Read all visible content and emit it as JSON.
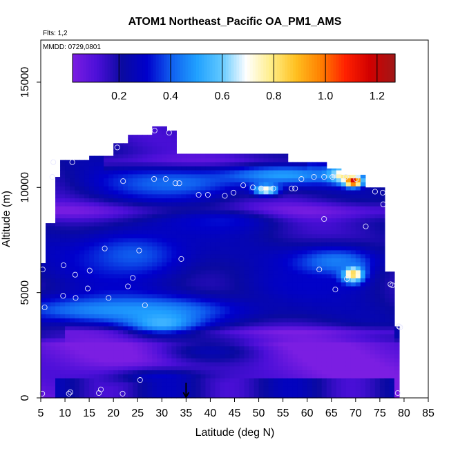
{
  "chart_data": {
    "type": "heatmap",
    "title": "ATOM1 Northeast_Pacific OA_PM1_AMS",
    "flts_text": "Flts: 1,2",
    "mmdd_text": "MMDD: 0729,0801",
    "xlabel": "Latitude (deg N)",
    "ylabel": "Altitude (m)",
    "xlim": [
      5,
      85
    ],
    "ylim": [
      0,
      17000
    ],
    "x_ticks": [
      5,
      10,
      15,
      20,
      25,
      30,
      35,
      40,
      45,
      50,
      55,
      60,
      65,
      70,
      75,
      80,
      85
    ],
    "y_ticks": [
      0,
      5000,
      10000,
      15000
    ],
    "grid": false,
    "colorbar": {
      "min": 0.02,
      "max": 1.27,
      "ticks": [
        0.2,
        0.4,
        0.6,
        0.8,
        1.0,
        1.2
      ],
      "tick_labels": [
        "0.2",
        "0.4",
        "0.6",
        "0.8",
        "1.0",
        "1.2"
      ],
      "placement": "top"
    },
    "colormap": [
      "#7b1ee2",
      "#4b0fd8",
      "#0a0aa0",
      "#0000cc",
      "#1060f0",
      "#20a0ff",
      "#60c8ff",
      "#ffffff",
      "#ffee88",
      "#ffc020",
      "#ff8000",
      "#ff2000",
      "#d00000",
      "#a01818"
    ],
    "background_value": 0.05,
    "coverage": [
      {
        "lat": [
          5,
          6.5
        ],
        "alt_min": 0,
        "alt_max": 6400
      },
      {
        "lat": [
          6.5,
          8
        ],
        "alt_min": 0,
        "alt_max": 8300
      },
      {
        "lat": [
          8,
          9.5
        ],
        "alt_min": 0,
        "alt_max": 10500
      },
      {
        "lat": [
          9.5,
          15
        ],
        "alt_min": 0,
        "alt_max": 11300
      },
      {
        "lat": [
          15,
          20
        ],
        "alt_min": 0,
        "alt_max": 11500
      },
      {
        "lat": [
          20,
          23
        ],
        "alt_min": 0,
        "alt_max": 12100
      },
      {
        "lat": [
          23,
          28
        ],
        "alt_min": 0,
        "alt_max": 12500
      },
      {
        "lat": [
          28,
          31
        ],
        "alt_min": 0,
        "alt_max": 12900
      },
      {
        "lat": [
          31,
          33
        ],
        "alt_min": 0,
        "alt_max": 12700
      },
      {
        "lat": [
          33,
          56
        ],
        "alt_min": 0,
        "alt_max": 11600
      },
      {
        "lat": [
          56,
          64
        ],
        "alt_min": 0,
        "alt_max": 11200
      },
      {
        "lat": [
          64,
          67
        ],
        "alt_min": 0,
        "alt_max": 10900
      },
      {
        "lat": [
          67,
          72
        ],
        "alt_min": 0,
        "alt_max": 10600
      },
      {
        "lat": [
          72,
          76
        ],
        "alt_min": 0,
        "alt_max": 10000
      },
      {
        "lat": [
          76,
          78.5
        ],
        "alt_min": 0,
        "alt_max": 6000
      },
      {
        "lat": [
          78.5,
          79.5
        ],
        "alt_min": 0,
        "alt_max": 3400
      }
    ],
    "features": [
      {
        "lat": 22,
        "alt": 4200,
        "value": 0.48,
        "wlat": 28,
        "walt": 750
      },
      {
        "lat": 30,
        "alt": 3600,
        "value": 0.55,
        "wlat": 7,
        "walt": 550
      },
      {
        "lat": 24,
        "alt": 6800,
        "value": 0.4,
        "wlat": 14,
        "walt": 1400
      },
      {
        "lat": 32,
        "alt": 10200,
        "value": 0.42,
        "wlat": 16,
        "walt": 800
      },
      {
        "lat": 42,
        "alt": 8400,
        "value": 0.32,
        "wlat": 12,
        "walt": 600
      },
      {
        "lat": 55,
        "alt": 10600,
        "value": 0.5,
        "wlat": 14,
        "walt": 500
      },
      {
        "lat": 51.5,
        "alt": 9900,
        "value": 0.75,
        "wlat": 2.5,
        "walt": 250
      },
      {
        "lat": 69.5,
        "alt": 10300,
        "value": 1.2,
        "wlat": 1.8,
        "walt": 250
      },
      {
        "lat": 67.5,
        "alt": 10600,
        "value": 0.8,
        "wlat": 3,
        "walt": 350
      },
      {
        "lat": 69.5,
        "alt": 5900,
        "value": 0.85,
        "wlat": 2.5,
        "walt": 450
      },
      {
        "lat": 66,
        "alt": 6500,
        "value": 0.45,
        "wlat": 10,
        "walt": 800
      },
      {
        "lat": 60,
        "alt": 5400,
        "value": 0.3,
        "wlat": 14,
        "walt": 900
      },
      {
        "lat": 30,
        "alt": 1000,
        "value": 0.3,
        "wlat": 12,
        "walt": 500
      },
      {
        "lat": 40,
        "alt": 2200,
        "value": 0.25,
        "wlat": 10,
        "walt": 600
      }
    ],
    "dark_bands": [
      {
        "lat_min": 8,
        "lat_max": 77,
        "alt": 8900,
        "thick": 400
      },
      {
        "lat_min": 10,
        "lat_max": 78,
        "alt": 3100,
        "thick": 300
      },
      {
        "lat_min": 18,
        "lat_max": 60,
        "alt": 11200,
        "thick": 350
      }
    ],
    "sample_points": [
      [
        5.3,
        200
      ],
      [
        10.8,
        200
      ],
      [
        11.1,
        270
      ],
      [
        17.4,
        400
      ],
      [
        17.0,
        230
      ],
      [
        21.9,
        200
      ],
      [
        25.5,
        850
      ],
      [
        78.7,
        230
      ],
      [
        5.8,
        4300
      ],
      [
        5.4,
        6100
      ],
      [
        9.6,
        4850
      ],
      [
        12.2,
        4750
      ],
      [
        9.7,
        6300
      ],
      [
        12.1,
        5850
      ],
      [
        14.7,
        5200
      ],
      [
        15.1,
        6050
      ],
      [
        19.0,
        4750
      ],
      [
        23.0,
        5300
      ],
      [
        24.0,
        5700
      ],
      [
        26.5,
        4400
      ],
      [
        18.2,
        7100
      ],
      [
        25.3,
        7000
      ],
      [
        34.0,
        6600
      ],
      [
        7.4,
        10500
      ],
      [
        7.6,
        11200
      ],
      [
        11.5,
        11200
      ],
      [
        20.8,
        11900
      ],
      [
        22.0,
        10300
      ],
      [
        28.5,
        12700
      ],
      [
        31.5,
        12600
      ],
      [
        28.4,
        10400
      ],
      [
        30.8,
        10400
      ],
      [
        32.8,
        10200
      ],
      [
        33.6,
        10200
      ],
      [
        37.6,
        9650
      ],
      [
        39.5,
        9650
      ],
      [
        43.0,
        9600
      ],
      [
        44.8,
        9750
      ],
      [
        46.8,
        10100
      ],
      [
        48.8,
        10000
      ],
      [
        50.5,
        9950
      ],
      [
        53.0,
        9950
      ],
      [
        56.8,
        9950
      ],
      [
        57.5,
        9950
      ],
      [
        58.8,
        10400
      ],
      [
        61.4,
        10500
      ],
      [
        63.5,
        10500
      ],
      [
        65.2,
        10500
      ],
      [
        68.0,
        10500
      ],
      [
        70.1,
        10400
      ],
      [
        74.0,
        9800
      ],
      [
        75.6,
        9750
      ],
      [
        75.7,
        9200
      ],
      [
        63.5,
        8500
      ],
      [
        72.1,
        8150
      ],
      [
        62.5,
        6100
      ],
      [
        65.8,
        5150
      ],
      [
        68.2,
        5650
      ],
      [
        77.2,
        5400
      ],
      [
        77.6,
        5350
      ],
      [
        78.9,
        3400
      ],
      [
        79.2,
        3350
      ]
    ],
    "marker_lat": 35
  }
}
